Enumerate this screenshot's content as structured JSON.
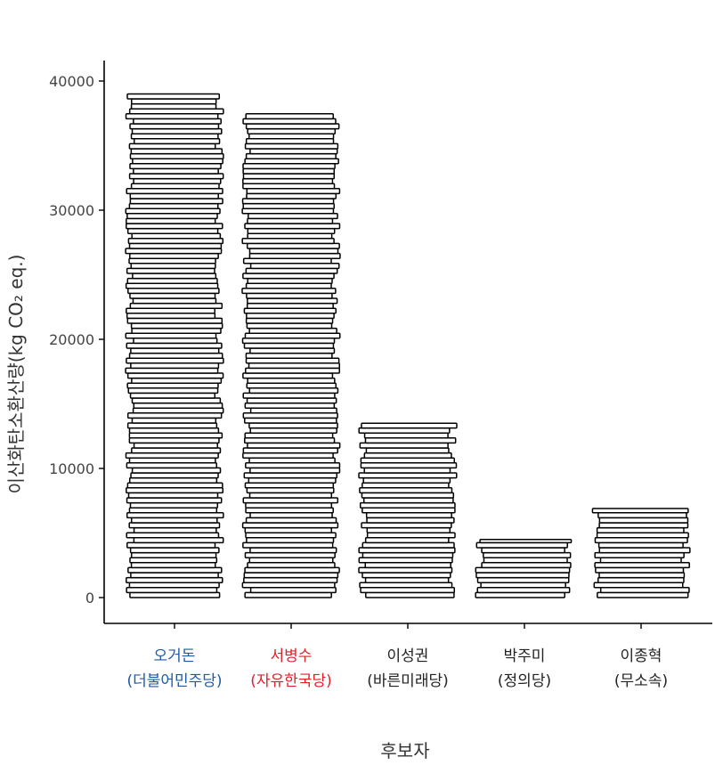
{
  "chart_data": {
    "type": "bar",
    "style": "stacked-strips",
    "categories": [
      {
        "name": "오거돈",
        "party": "(더불어민주당)",
        "color": "#1f5aa6"
      },
      {
        "name": "서병수",
        "party": "(자유한국당)",
        "color": "#e0202a"
      },
      {
        "name": "이성권",
        "party": "(바른미래당)",
        "color": "#222222"
      },
      {
        "name": "박주미",
        "party": "(정의당)",
        "color": "#222222"
      },
      {
        "name": "이종혁",
        "party": "(무소속)",
        "color": "#222222"
      }
    ],
    "values": [
      39000,
      37500,
      13500,
      4500,
      6900
    ],
    "ylabel": "이산화탄소환산량(kg CO₂ eq.)",
    "xlabel": "후보자",
    "ylim": [
      0,
      40000
    ],
    "yticks": [
      "0",
      "10000",
      "20000",
      "30000",
      "40000"
    ],
    "grid": false,
    "legend": "none"
  }
}
